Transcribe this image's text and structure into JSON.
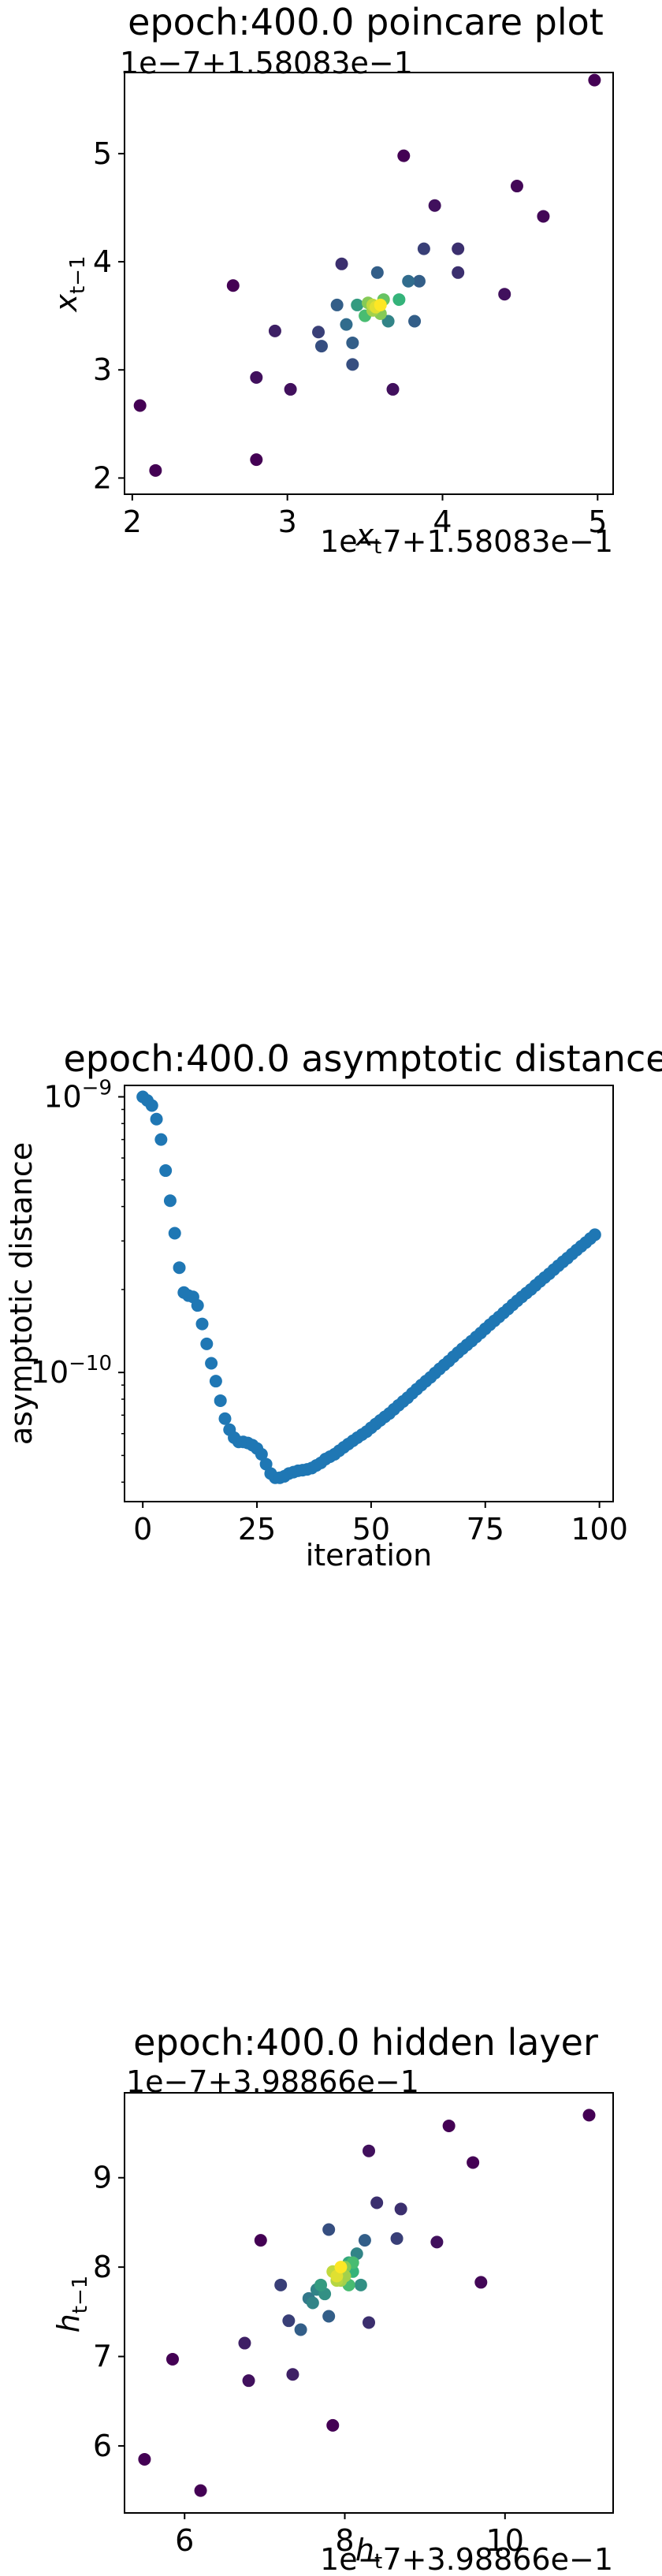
{
  "colors": {
    "viridis_low": "#440154",
    "viridis_mid": "#31688e",
    "viridis_mid2": "#35b779",
    "viridis_high": "#fde725",
    "line_series": "#1f77b4"
  },
  "chart_data": [
    {
      "type": "scatter",
      "title": "epoch:400.0 poincare plot",
      "xlabel": "x_t",
      "ylabel": "x_{t−1}",
      "x_offset_text": "1e−7+1.58083e−1",
      "y_offset_text": "1e−7+1.58083e−1",
      "xlim": [
        1.95,
        5.1
      ],
      "ylim": [
        1.85,
        5.75
      ],
      "xticks": [
        2,
        3,
        4,
        5
      ],
      "yticks": [
        2,
        3,
        4,
        5
      ],
      "color_encoding": "point density (viridis)",
      "points": [
        [
          2.05,
          2.67
        ],
        [
          2.15,
          2.07
        ],
        [
          2.65,
          3.78
        ],
        [
          2.8,
          2.93
        ],
        [
          2.8,
          2.17
        ],
        [
          2.92,
          3.36
        ],
        [
          3.02,
          2.82
        ],
        [
          3.2,
          3.35
        ],
        [
          3.22,
          3.22
        ],
        [
          3.32,
          3.6
        ],
        [
          3.35,
          3.98
        ],
        [
          3.38,
          3.42
        ],
        [
          3.42,
          3.25
        ],
        [
          3.42,
          3.05
        ],
        [
          3.45,
          3.6
        ],
        [
          3.5,
          3.5
        ],
        [
          3.55,
          3.55
        ],
        [
          3.6,
          3.6
        ],
        [
          3.58,
          3.9
        ],
        [
          3.65,
          3.45
        ],
        [
          3.68,
          2.82
        ],
        [
          3.72,
          3.65
        ],
        [
          3.75,
          4.98
        ],
        [
          3.78,
          3.82
        ],
        [
          3.82,
          3.45
        ],
        [
          3.85,
          3.82
        ],
        [
          3.88,
          4.12
        ],
        [
          3.95,
          4.52
        ],
        [
          4.1,
          3.9
        ],
        [
          4.1,
          4.12
        ],
        [
          4.4,
          3.7
        ],
        [
          4.48,
          4.7
        ],
        [
          4.65,
          4.42
        ],
        [
          4.98,
          5.68
        ],
        [
          3.52,
          3.62
        ],
        [
          3.6,
          3.52
        ],
        [
          3.62,
          3.65
        ],
        [
          3.55,
          3.6
        ],
        [
          3.57,
          3.58
        ]
      ],
      "densities": [
        0,
        0,
        0,
        0.05,
        0,
        0.1,
        0.05,
        0.2,
        0.25,
        0.3,
        0.15,
        0.35,
        0.3,
        0.25,
        0.55,
        0.7,
        0.85,
        1.0,
        0.3,
        0.45,
        0.05,
        0.65,
        0,
        0.35,
        0.3,
        0.3,
        0.2,
        0.05,
        0.15,
        0.15,
        0.05,
        0.02,
        0.02,
        0,
        0.8,
        0.8,
        0.75,
        0.9,
        0.95
      ]
    },
    {
      "type": "scatter",
      "title": "epoch:400.0 asymptotic distance",
      "xlabel": "iteration",
      "ylabel": "asymptotic distance",
      "yscale": "log",
      "xlim": [
        -4,
        103
      ],
      "ylim": [
        3.4e-11,
        1.1e-09
      ],
      "xticks": [
        0,
        25,
        50,
        75,
        100
      ],
      "yticks": [
        {
          "value": 1e-10,
          "base": "10",
          "exp": "−10"
        },
        {
          "value": 1e-09,
          "base": "10",
          "exp": "−9"
        }
      ],
      "points": [
        [
          0,
          1e-09
        ],
        [
          1,
          9.7e-10
        ],
        [
          2,
          9.3e-10
        ],
        [
          3,
          8.3e-10
        ],
        [
          4,
          7e-10
        ],
        [
          5,
          5.4e-10
        ],
        [
          6,
          4.2e-10
        ],
        [
          7,
          3.2e-10
        ],
        [
          8,
          2.4e-10
        ],
        [
          9,
          1.95e-10
        ],
        [
          10,
          1.9e-10
        ],
        [
          11,
          1.88e-10
        ],
        [
          12,
          1.75e-10
        ],
        [
          13,
          1.5e-10
        ],
        [
          14,
          1.27e-10
        ],
        [
          15,
          1.08e-10
        ],
        [
          16,
          9.3e-11
        ],
        [
          17,
          7.9e-11
        ],
        [
          18,
          6.8e-11
        ],
        [
          19,
          6.2e-11
        ],
        [
          20,
          5.8e-11
        ],
        [
          21,
          5.6e-11
        ],
        [
          22,
          5.6e-11
        ],
        [
          23,
          5.55e-11
        ],
        [
          24,
          5.45e-11
        ],
        [
          25,
          5.3e-11
        ],
        [
          26,
          5.05e-11
        ],
        [
          27,
          4.65e-11
        ],
        [
          28,
          4.3e-11
        ],
        [
          29,
          4.15e-11
        ],
        [
          30,
          4.15e-11
        ],
        [
          31,
          4.2e-11
        ],
        [
          32,
          4.3e-11
        ],
        [
          33,
          4.35e-11
        ],
        [
          34,
          4.4e-11
        ],
        [
          35,
          4.42e-11
        ],
        [
          36,
          4.45e-11
        ],
        [
          37,
          4.5e-11
        ],
        [
          38,
          4.6e-11
        ],
        [
          39,
          4.7e-11
        ],
        [
          40,
          4.85e-11
        ],
        [
          41,
          4.95e-11
        ],
        [
          42,
          5.05e-11
        ],
        [
          43,
          5.2e-11
        ],
        [
          44,
          5.35e-11
        ],
        [
          45,
          5.5e-11
        ],
        [
          46,
          5.65e-11
        ],
        [
          47,
          5.8e-11
        ],
        [
          48,
          5.95e-11
        ],
        [
          49,
          6.1e-11
        ],
        [
          50,
          6.3e-11
        ],
        [
          51,
          6.5e-11
        ],
        [
          52,
          6.7e-11
        ],
        [
          53,
          6.9e-11
        ],
        [
          54,
          7.1e-11
        ],
        [
          55,
          7.35e-11
        ],
        [
          56,
          7.6e-11
        ],
        [
          57,
          7.85e-11
        ],
        [
          58,
          8.1e-11
        ],
        [
          59,
          8.4e-11
        ],
        [
          60,
          8.7e-11
        ],
        [
          61,
          9e-11
        ],
        [
          62,
          9.3e-11
        ],
        [
          63,
          9.6e-11
        ],
        [
          64,
          9.95e-11
        ],
        [
          65,
          1.03e-10
        ],
        [
          66,
          1.065e-10
        ],
        [
          67,
          1.1e-10
        ],
        [
          68,
          1.14e-10
        ],
        [
          69,
          1.18e-10
        ],
        [
          70,
          1.22e-10
        ],
        [
          71,
          1.26e-10
        ],
        [
          72,
          1.3e-10
        ],
        [
          73,
          1.345e-10
        ],
        [
          74,
          1.39e-10
        ],
        [
          75,
          1.44e-10
        ],
        [
          76,
          1.49e-10
        ],
        [
          77,
          1.54e-10
        ],
        [
          78,
          1.59e-10
        ],
        [
          79,
          1.645e-10
        ],
        [
          80,
          1.7e-10
        ],
        [
          81,
          1.76e-10
        ],
        [
          82,
          1.82e-10
        ],
        [
          83,
          1.88e-10
        ],
        [
          84,
          1.94e-10
        ],
        [
          85,
          2e-10
        ],
        [
          86,
          2.07e-10
        ],
        [
          87,
          2.14e-10
        ],
        [
          88,
          2.21e-10
        ],
        [
          89,
          2.28e-10
        ],
        [
          90,
          2.36e-10
        ],
        [
          91,
          2.44e-10
        ],
        [
          92,
          2.52e-10
        ],
        [
          93,
          2.6e-10
        ],
        [
          94,
          2.69e-10
        ],
        [
          95,
          2.78e-10
        ],
        [
          96,
          2.87e-10
        ],
        [
          97,
          2.96e-10
        ],
        [
          98,
          3.06e-10
        ],
        [
          99,
          3.16e-10
        ]
      ]
    },
    {
      "type": "scatter",
      "title": "epoch:400.0 hidden layer",
      "xlabel": "h_t",
      "ylabel": "h_{t−1}",
      "x_offset_text": "1e−7+3.98866e−1",
      "y_offset_text": "1e−7+3.98866e−1",
      "xlim": [
        5.25,
        11.35
      ],
      "ylim": [
        5.25,
        9.95
      ],
      "xticks": [
        6,
        8,
        10
      ],
      "yticks": [
        6,
        7,
        8,
        9
      ],
      "color_encoding": "point density (viridis)",
      "points": [
        [
          5.5,
          5.85
        ],
        [
          5.85,
          6.97
        ],
        [
          6.2,
          5.5
        ],
        [
          6.75,
          7.15
        ],
        [
          6.8,
          6.73
        ],
        [
          6.95,
          8.3
        ],
        [
          7.2,
          7.8
        ],
        [
          7.3,
          7.4
        ],
        [
          7.35,
          6.8
        ],
        [
          7.45,
          7.3
        ],
        [
          7.55,
          7.65
        ],
        [
          7.6,
          7.6
        ],
        [
          7.7,
          7.8
        ],
        [
          7.8,
          7.45
        ],
        [
          7.85,
          6.23
        ],
        [
          7.8,
          8.42
        ],
        [
          7.9,
          7.9
        ],
        [
          7.95,
          7.85
        ],
        [
          8.0,
          8.0
        ],
        [
          8.05,
          7.8
        ],
        [
          8.1,
          7.95
        ],
        [
          8.15,
          8.15
        ],
        [
          8.25,
          8.3
        ],
        [
          8.3,
          7.38
        ],
        [
          8.3,
          9.3
        ],
        [
          8.4,
          8.72
        ],
        [
          8.65,
          8.32
        ],
        [
          8.7,
          8.65
        ],
        [
          9.15,
          8.28
        ],
        [
          9.3,
          9.58
        ],
        [
          9.6,
          9.17
        ],
        [
          9.7,
          7.83
        ],
        [
          11.05,
          9.7
        ],
        [
          7.85,
          7.95
        ],
        [
          7.9,
          7.85
        ],
        [
          8.0,
          7.9
        ],
        [
          8.05,
          8.05
        ],
        [
          7.95,
          8.0
        ],
        [
          8.2,
          7.8
        ],
        [
          8.1,
          8.05
        ],
        [
          7.75,
          7.7
        ],
        [
          7.65,
          7.75
        ]
      ],
      "densities": [
        0,
        0,
        0,
        0.1,
        0.05,
        0,
        0.2,
        0.2,
        0.1,
        0.3,
        0.4,
        0.45,
        0.55,
        0.3,
        0,
        0.25,
        0.95,
        0.85,
        0.8,
        0.7,
        0.65,
        0.45,
        0.3,
        0.15,
        0.05,
        0.15,
        0.2,
        0.15,
        0.05,
        0,
        0,
        0.02,
        0,
        0.9,
        0.88,
        0.85,
        0.6,
        1.0,
        0.5,
        0.7,
        0.5,
        0.45
      ]
    }
  ]
}
